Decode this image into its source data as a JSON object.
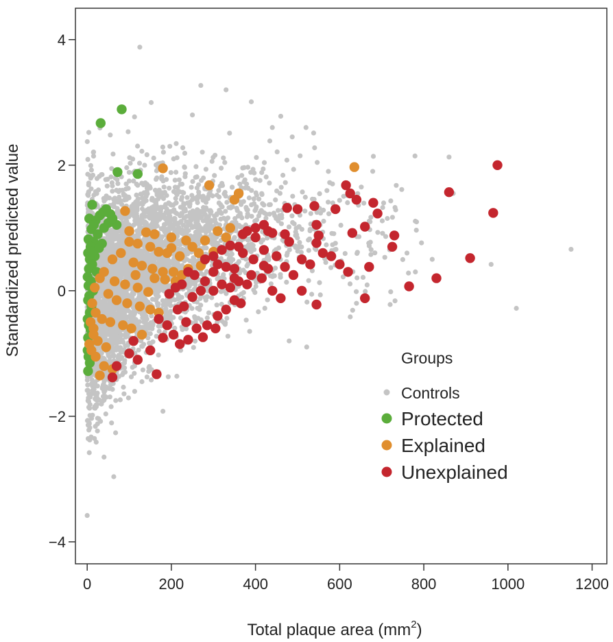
{
  "chart_data": {
    "type": "scatter",
    "title": "",
    "xlabel": "Total plaque area (mm",
    "xlabel_superscript": "2",
    "xlabel_suffix": ")",
    "ylabel": "Standardized predicted value",
    "xlim": [
      -28,
      1235
    ],
    "ylim": [
      -4.35,
      4.5
    ],
    "x_ticks": [
      0,
      200,
      400,
      600,
      800,
      1000,
      1200
    ],
    "y_ticks": [
      -4,
      -2,
      0,
      2,
      4
    ],
    "y_tick_labels": [
      "−4",
      "−2",
      "0",
      "2",
      "4"
    ],
    "grid": false,
    "legend": {
      "title": "Groups",
      "placement": "bottom-right",
      "entries": [
        "Controls",
        "Protected",
        "Explained",
        "Unexplained"
      ]
    },
    "colors": {
      "Controls": "#c4c4c4",
      "Protected": "#5bad3b",
      "Explained": "#e08e2e",
      "Unexplained": "#c4262e"
    },
    "series": [
      {
        "name": "Controls",
        "control_envelope": {
          "x_max": 1000,
          "count": 4200,
          "seed": 7
        },
        "outliers": [
          [
            125,
            3.88
          ],
          [
            270,
            3.27
          ],
          [
            330,
            3.2
          ],
          [
            390,
            3.01
          ],
          [
            460,
            2.78
          ],
          [
            520,
            2.6
          ],
          [
            440,
            2.6
          ],
          [
            250,
            2.8
          ],
          [
            860,
            2.13
          ],
          [
            1150,
            0.66
          ],
          [
            1020,
            -0.28
          ],
          [
            960,
            0.42
          ],
          [
            870,
            1.55
          ],
          [
            820,
            0.5
          ],
          [
            780,
            0.3
          ],
          [
            760,
            0.6
          ],
          [
            0,
            -3.58
          ],
          [
            180,
            -1.92
          ],
          [
            40,
            -2.65
          ],
          [
            480,
            -0.8
          ],
          [
            720,
            -0.22
          ],
          [
            640,
            -0.2
          ]
        ]
      },
      {
        "name": "Protected",
        "points": [
          [
            32,
            2.67
          ],
          [
            82,
            2.89
          ],
          [
            72,
            1.89
          ],
          [
            120,
            1.86
          ],
          [
            12,
            1.37
          ],
          [
            45,
            1.3
          ],
          [
            55,
            1.22
          ],
          [
            30,
            1.2
          ],
          [
            70,
            1.05
          ],
          [
            5,
            1.15
          ],
          [
            20,
            1.12
          ],
          [
            40,
            1.0
          ],
          [
            10,
            0.98
          ],
          [
            25,
            0.9
          ],
          [
            3,
            0.82
          ],
          [
            15,
            0.78
          ],
          [
            35,
            0.75
          ],
          [
            8,
            0.7
          ],
          [
            2,
            0.6
          ],
          [
            18,
            0.55
          ],
          [
            6,
            0.5
          ],
          [
            12,
            0.42
          ],
          [
            4,
            0.35
          ],
          [
            22,
            0.3
          ],
          [
            1,
            0.22
          ],
          [
            9,
            0.15
          ],
          [
            3,
            0.08
          ],
          [
            14,
            0.0
          ],
          [
            5,
            -0.08
          ],
          [
            2,
            -0.15
          ],
          [
            10,
            -0.25
          ],
          [
            6,
            -0.35
          ],
          [
            1,
            -0.45
          ],
          [
            4,
            -0.55
          ],
          [
            8,
            -0.62
          ],
          [
            2,
            -0.75
          ],
          [
            5,
            -0.85
          ],
          [
            1,
            -0.95
          ],
          [
            3,
            -1.05
          ],
          [
            6,
            -1.15
          ],
          [
            2,
            -1.28
          ],
          [
            12,
            0.62
          ],
          [
            28,
            0.68
          ],
          [
            16,
            1.05
          ],
          [
            50,
            1.08
          ],
          [
            60,
            1.15
          ],
          [
            38,
            1.25
          ]
        ]
      },
      {
        "name": "Explained",
        "points": [
          [
            180,
            1.95
          ],
          [
            635,
            1.97
          ],
          [
            290,
            1.68
          ],
          [
            360,
            1.55
          ],
          [
            350,
            1.45
          ],
          [
            90,
            1.27
          ],
          [
            100,
            0.95
          ],
          [
            140,
            0.93
          ],
          [
            160,
            0.9
          ],
          [
            200,
            0.85
          ],
          [
            235,
            0.8
          ],
          [
            280,
            0.8
          ],
          [
            310,
            0.95
          ],
          [
            330,
            0.85
          ],
          [
            340,
            1.0
          ],
          [
            120,
            0.75
          ],
          [
            150,
            0.7
          ],
          [
            170,
            0.62
          ],
          [
            190,
            0.6
          ],
          [
            220,
            0.55
          ],
          [
            250,
            0.7
          ],
          [
            265,
            0.6
          ],
          [
            300,
            0.62
          ],
          [
            80,
            0.6
          ],
          [
            60,
            0.5
          ],
          [
            110,
            0.45
          ],
          [
            130,
            0.4
          ],
          [
            155,
            0.35
          ],
          [
            180,
            0.3
          ],
          [
            205,
            0.3
          ],
          [
            225,
            0.25
          ],
          [
            40,
            0.3
          ],
          [
            30,
            0.2
          ],
          [
            65,
            0.15
          ],
          [
            90,
            0.1
          ],
          [
            120,
            0.05
          ],
          [
            145,
            -0.02
          ],
          [
            160,
            0.2
          ],
          [
            185,
            0.18
          ],
          [
            210,
            0.15
          ],
          [
            50,
            -0.05
          ],
          [
            70,
            -0.15
          ],
          [
            95,
            -0.2
          ],
          [
            125,
            -0.25
          ],
          [
            150,
            -0.3
          ],
          [
            170,
            -0.35
          ],
          [
            20,
            -0.35
          ],
          [
            35,
            -0.45
          ],
          [
            55,
            -0.5
          ],
          [
            85,
            -0.55
          ],
          [
            105,
            -0.6
          ],
          [
            130,
            -0.7
          ],
          [
            15,
            -0.7
          ],
          [
            25,
            -0.8
          ],
          [
            45,
            -0.9
          ],
          [
            10,
            -0.95
          ],
          [
            20,
            -1.05
          ],
          [
            40,
            -1.2
          ],
          [
            30,
            -1.35
          ],
          [
            60,
            -1.25
          ],
          [
            15,
            -0.6
          ],
          [
            5,
            -0.85
          ],
          [
            8,
            -0.5
          ],
          [
            12,
            -0.2
          ],
          [
            18,
            0.05
          ],
          [
            200,
            0.68
          ],
          [
            240,
            0.35
          ],
          [
            270,
            0.4
          ],
          [
            100,
            0.78
          ],
          [
            115,
            0.25
          ]
        ]
      },
      {
        "name": "Unexplained",
        "points": [
          [
            975,
            2.0
          ],
          [
            615,
            1.68
          ],
          [
            625,
            1.55
          ],
          [
            860,
            1.57
          ],
          [
            965,
            1.24
          ],
          [
            640,
            1.45
          ],
          [
            680,
            1.4
          ],
          [
            690,
            1.23
          ],
          [
            590,
            1.3
          ],
          [
            540,
            1.35
          ],
          [
            500,
            1.3
          ],
          [
            475,
            1.32
          ],
          [
            660,
            1.02
          ],
          [
            630,
            0.92
          ],
          [
            730,
            0.88
          ],
          [
            725,
            0.7
          ],
          [
            545,
            1.05
          ],
          [
            550,
            0.88
          ],
          [
            545,
            0.76
          ],
          [
            480,
            0.78
          ],
          [
            470,
            0.9
          ],
          [
            440,
            0.92
          ],
          [
            420,
            1.05
          ],
          [
            430,
            0.95
          ],
          [
            400,
            1.0
          ],
          [
            380,
            0.95
          ],
          [
            370,
            0.9
          ],
          [
            360,
            0.7
          ],
          [
            340,
            0.72
          ],
          [
            320,
            0.65
          ],
          [
            300,
            0.55
          ],
          [
            280,
            0.5
          ],
          [
            310,
            0.42
          ],
          [
            330,
            0.38
          ],
          [
            350,
            0.35
          ],
          [
            370,
            0.6
          ],
          [
            395,
            0.5
          ],
          [
            420,
            0.4
          ],
          [
            450,
            0.55
          ],
          [
            470,
            0.38
          ],
          [
            510,
            0.5
          ],
          [
            530,
            0.42
          ],
          [
            560,
            0.6
          ],
          [
            600,
            0.42
          ],
          [
            620,
            0.3
          ],
          [
            670,
            0.38
          ],
          [
            910,
            0.52
          ],
          [
            830,
            0.2
          ],
          [
            765,
            0.07
          ],
          [
            660,
            -0.12
          ],
          [
            545,
            -0.22
          ],
          [
            510,
            0.0
          ],
          [
            460,
            -0.12
          ],
          [
            440,
            0.0
          ],
          [
            415,
            0.2
          ],
          [
            390,
            0.25
          ],
          [
            360,
            0.15
          ],
          [
            340,
            0.05
          ],
          [
            320,
            0.1
          ],
          [
            300,
            0.0
          ],
          [
            280,
            0.15
          ],
          [
            255,
            0.25
          ],
          [
            240,
            0.3
          ],
          [
            225,
            0.1
          ],
          [
            230,
            -0.25
          ],
          [
            250,
            -0.1
          ],
          [
            270,
            0.0
          ],
          [
            210,
            0.05
          ],
          [
            195,
            -0.05
          ],
          [
            215,
            -0.3
          ],
          [
            235,
            -0.5
          ],
          [
            260,
            -0.6
          ],
          [
            285,
            -0.55
          ],
          [
            310,
            -0.4
          ],
          [
            330,
            -0.3
          ],
          [
            350,
            -0.15
          ],
          [
            365,
            -0.2
          ],
          [
            170,
            -0.45
          ],
          [
            190,
            -0.55
          ],
          [
            205,
            -0.7
          ],
          [
            240,
            -0.78
          ],
          [
            275,
            -0.74
          ],
          [
            305,
            -0.6
          ],
          [
            150,
            -0.95
          ],
          [
            120,
            -1.1
          ],
          [
            110,
            -0.8
          ],
          [
            100,
            -1.0
          ],
          [
            70,
            -1.2
          ],
          [
            60,
            -1.38
          ],
          [
            165,
            -1.33
          ],
          [
            180,
            -0.75
          ],
          [
            220,
            -0.85
          ],
          [
            400,
            0.85
          ],
          [
            420,
            0.65
          ],
          [
            300,
            0.3
          ],
          [
            350,
            0.2
          ],
          [
            380,
            0.1
          ],
          [
            430,
            0.35
          ],
          [
            490,
            0.25
          ],
          [
            580,
            0.55
          ]
        ]
      }
    ]
  }
}
